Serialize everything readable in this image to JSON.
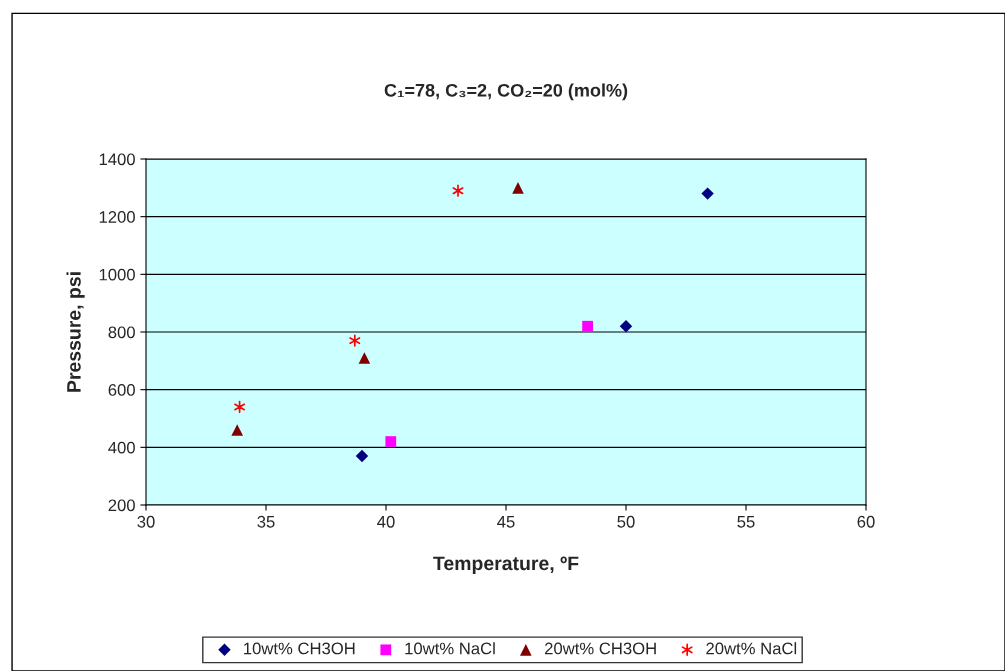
{
  "chart_data": {
    "type": "scatter",
    "title": "C₁=78, C₃=2, CO₂=20 (mol%)",
    "xlabel": "Temperature, ºF",
    "ylabel": "Pressure, psi",
    "xlim": [
      30,
      60
    ],
    "xticks": [
      30,
      35,
      40,
      45,
      50,
      55,
      60
    ],
    "ylim": [
      200,
      1400
    ],
    "yticks": [
      200,
      400,
      600,
      800,
      1000,
      1200,
      1400
    ],
    "grid": "y",
    "legend": "bottom",
    "series": [
      {
        "name": "10wt% CH3OH",
        "color": "#000080",
        "marker": "diamond",
        "x": [
          39.0,
          50.0,
          53.4
        ],
        "values": [
          370,
          820,
          1280
        ]
      },
      {
        "name": "10wt% NaCl",
        "color": "#ff00ff",
        "marker": "square",
        "x": [
          40.2,
          48.4
        ],
        "values": [
          420,
          820
        ]
      },
      {
        "name": "20wt% CH3OH",
        "color": "#800000",
        "marker": "triangle",
        "x": [
          33.8,
          39.1,
          45.5
        ],
        "values": [
          460,
          710,
          1300
        ]
      },
      {
        "name": "20wt% NaCl",
        "color": "#ff0000",
        "marker": "cross",
        "x": [
          33.9,
          38.7,
          43.0
        ],
        "values": [
          540,
          770,
          1290
        ]
      }
    ]
  }
}
